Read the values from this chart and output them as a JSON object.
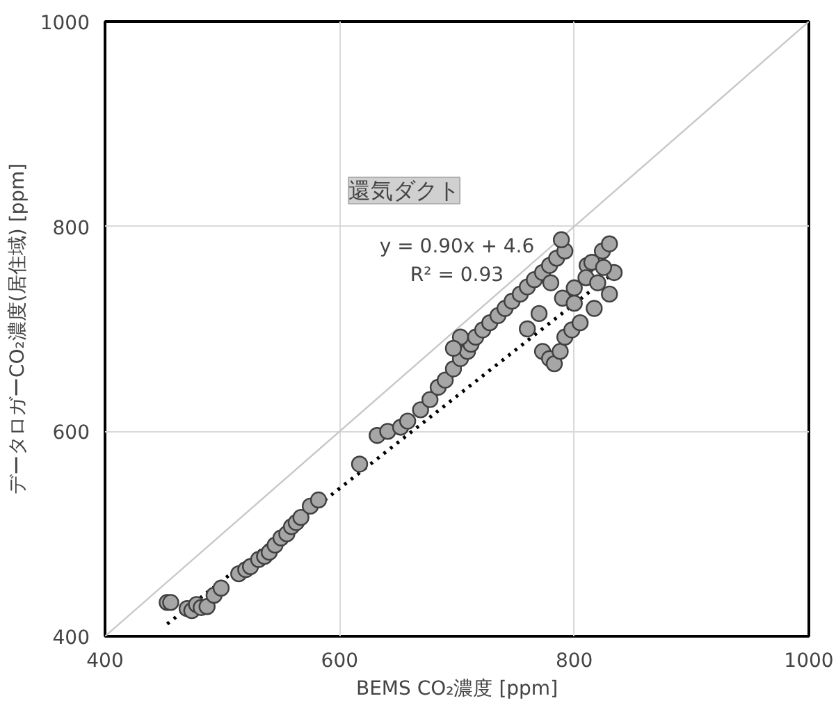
{
  "chart_data": {
    "type": "scatter",
    "xlabel": "BEMS CO₂濃度 [ppm]",
    "ylabel": "データロガーCO₂濃度(居住域) [ppm]",
    "xlim": [
      400,
      1000
    ],
    "ylim": [
      400,
      1000
    ],
    "xticks": [
      400,
      600,
      800,
      1000
    ],
    "yticks": [
      400,
      600,
      800,
      1000
    ],
    "grid": true,
    "annotations": [
      "還気ダクト",
      "y = 0.90x + 4.6",
      "R² = 0.93"
    ],
    "series": [
      {
        "marker": "circle",
        "color": "#a6a6a6",
        "x": [
          453,
          456,
          470,
          474,
          478,
          482,
          487,
          493,
          499,
          514,
          520,
          524,
          531,
          536,
          540,
          545,
          550,
          555,
          559,
          563,
          567,
          575,
          582,
          617,
          632,
          641,
          652,
          658,
          669,
          677,
          684,
          690,
          697,
          703,
          709,
          712,
          703,
          697,
          716,
          722,
          728,
          735,
          741,
          747,
          754,
          760,
          766,
          773,
          779,
          785,
          792,
          789,
          773,
          779,
          783,
          788,
          792,
          798,
          811,
          824,
          830,
          834,
          830,
          817,
          805,
          800,
          810,
          820,
          790,
          770,
          760,
          815,
          825,
          800,
          780
        ],
        "values": [
          433,
          433,
          427,
          425,
          431,
          428,
          429,
          440,
          447,
          461,
          465,
          468,
          475,
          478,
          482,
          489,
          496,
          500,
          507,
          511,
          516,
          527,
          533,
          568,
          596,
          600,
          604,
          610,
          621,
          631,
          643,
          650,
          661,
          671,
          678,
          685,
          692,
          681,
          692,
          699,
          706,
          713,
          720,
          727,
          734,
          741,
          748,
          755,
          762,
          769,
          776,
          787,
          678,
          671,
          666,
          678,
          692,
          699,
          762,
          776,
          783,
          755,
          734,
          720,
          706,
          740,
          750,
          745,
          730,
          715,
          700,
          765,
          760,
          725,
          745
        ]
      },
      {
        "type": "line",
        "color": "#000000",
        "line_style": "dotted",
        "x": [
          453,
          835
        ],
        "values": [
          412,
          756
        ]
      },
      {
        "type": "line",
        "color": "#c8c8c8",
        "line_style": "solid",
        "x": [
          400,
          1000
        ],
        "values": [
          400,
          1000
        ]
      }
    ]
  }
}
